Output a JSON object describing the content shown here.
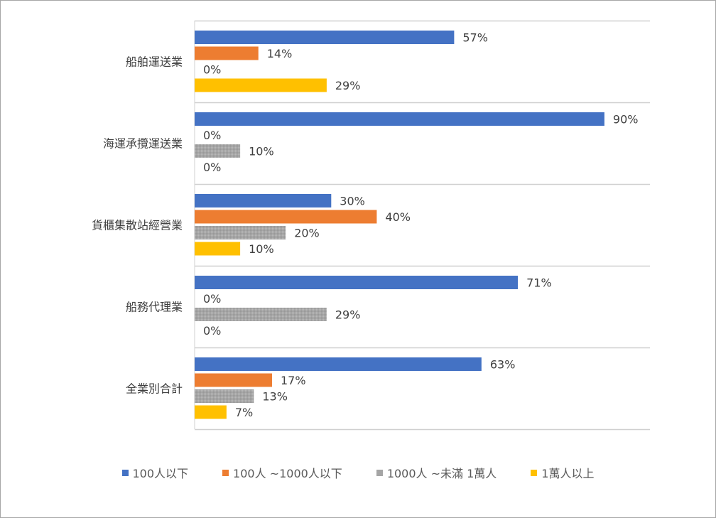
{
  "chart_data": {
    "type": "bar",
    "orientation": "horizontal",
    "title": "",
    "xlabel": "",
    "ylabel": "",
    "xlim": [
      0,
      100
    ],
    "grid": "horizontal category separators",
    "legend_position": "bottom",
    "categories": [
      "船舶運送業",
      "海運承攬運送業",
      "貨櫃集散站經營業",
      "船務代理業",
      "全業別合計"
    ],
    "series": [
      {
        "name": "100人以下",
        "color": "#4472c4",
        "values": [
          57,
          90,
          30,
          71,
          63
        ]
      },
      {
        "name": "100人 ~1000人以下",
        "color": "#ed7d31",
        "values": [
          14,
          0,
          40,
          0,
          17
        ]
      },
      {
        "name": "1000人 ~未滿 1萬人",
        "color": "#a5a5a5",
        "values": [
          0,
          10,
          20,
          29,
          13
        ]
      },
      {
        "name": "1萬人以上",
        "color": "#ffc000",
        "values": [
          29,
          0,
          10,
          0,
          7
        ]
      }
    ],
    "value_suffix": "%"
  }
}
